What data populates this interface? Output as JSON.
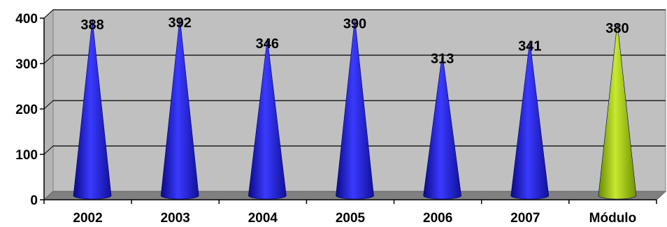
{
  "chart_data": {
    "type": "bar",
    "bar_shape": "cone",
    "categories": [
      "2002",
      "2003",
      "2004",
      "2005",
      "2006",
      "2007",
      "Módulo"
    ],
    "values": [
      388,
      392,
      346,
      390,
      313,
      341,
      380
    ],
    "value_labels": [
      "388",
      "392",
      "346",
      "390",
      "313",
      "341",
      "380"
    ],
    "title": "",
    "xlabel": "",
    "ylabel": "",
    "ylim": [
      0,
      400
    ],
    "yticks": [
      "0",
      "100",
      "200",
      "300",
      "400"
    ],
    "grid": true,
    "legend": "none",
    "colors": {
      "bars": [
        "#1e1ee6",
        "#1e1ee6",
        "#1e1ee6",
        "#1e1ee6",
        "#1e1ee6",
        "#1e1ee6",
        "#a4c81a"
      ],
      "plot_background": "#c0c0c0",
      "floor": "#808080",
      "gridline": "#000000"
    }
  }
}
